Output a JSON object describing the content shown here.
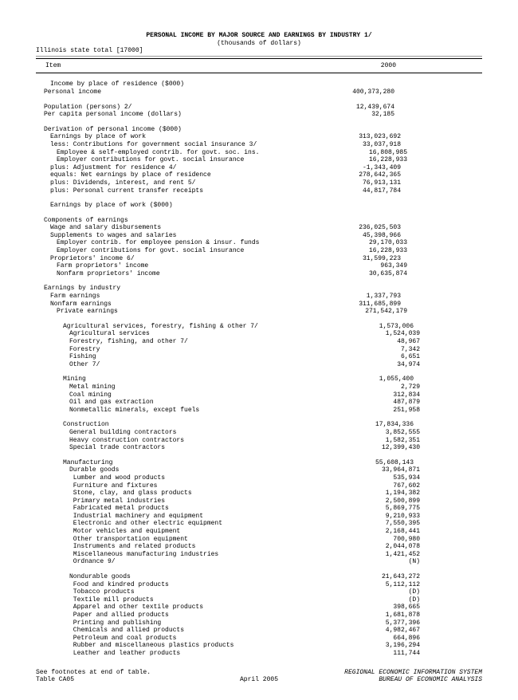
{
  "doc": {
    "title": "PERSONAL INCOME BY MAJOR SOURCE AND EARNINGS BY INDUSTRY 1/",
    "subtitle": "(thousands of dollars)",
    "state_line": "Illinois state total [17000]",
    "col_item": "Item",
    "col_year": "2000",
    "footnote1": "See footnotes at end of table.",
    "footnote2": "Table CA05",
    "date": "April 2005",
    "agency1": "REGIONAL ECONOMIC INFORMATION SYSTEM",
    "agency2": "BUREAU OF ECONOMIC ANALYSIS"
  },
  "rows": [
    {
      "t": "blank"
    },
    {
      "t": "row",
      "ind": 2,
      "label": "Income by place of residence ($000)",
      "val": ""
    },
    {
      "t": "row",
      "ind": 1,
      "label": "Personal income",
      "val": "400,373,280"
    },
    {
      "t": "blank"
    },
    {
      "t": "row",
      "ind": 1,
      "label": "Population (persons) 2/",
      "val": "12,439,674"
    },
    {
      "t": "row",
      "ind": 1,
      "label": "Per capita personal income (dollars)",
      "val": "32,185"
    },
    {
      "t": "blank"
    },
    {
      "t": "row",
      "ind": 1,
      "label": "Derivation of personal income ($000)",
      "val": ""
    },
    {
      "t": "row",
      "ind": 2,
      "label": "Earnings by place of work",
      "val": "313,023,692"
    },
    {
      "t": "row",
      "ind": 2,
      "label": "less: Contributions for government social insurance 3/",
      "val": "33,037,918"
    },
    {
      "t": "row",
      "ind": 3,
      "label": "Employee & self-employed contrib. for govt. soc. ins.",
      "val": "16,808,985"
    },
    {
      "t": "row",
      "ind": 3,
      "label": "Employer contributions for govt. social insurance",
      "val": "16,228,933"
    },
    {
      "t": "row",
      "ind": 2,
      "label": "plus: Adjustment for residence 4/",
      "val": "-1,343,409"
    },
    {
      "t": "row",
      "ind": 2,
      "label": "equals: Net earnings by place of residence",
      "val": "278,642,365"
    },
    {
      "t": "row",
      "ind": 2,
      "label": "plus: Dividends, interest, and rent 5/",
      "val": "76,913,131"
    },
    {
      "t": "row",
      "ind": 2,
      "label": "plus: Personal current transfer receipts",
      "val": "44,817,784"
    },
    {
      "t": "blank"
    },
    {
      "t": "row",
      "ind": 2,
      "label": "Earnings by place of work ($000)",
      "val": ""
    },
    {
      "t": "blank"
    },
    {
      "t": "row",
      "ind": 1,
      "label": "Components of earnings",
      "val": ""
    },
    {
      "t": "row",
      "ind": 2,
      "label": "Wage and salary disbursements",
      "val": "236,025,503"
    },
    {
      "t": "row",
      "ind": 2,
      "label": "Supplements to wages and salaries",
      "val": "45,398,966"
    },
    {
      "t": "row",
      "ind": 3,
      "label": "Employer contrib. for employee pension & insur. funds",
      "val": "29,170,033"
    },
    {
      "t": "row",
      "ind": 3,
      "label": "Employer contributions for govt. social insurance",
      "val": "16,228,933"
    },
    {
      "t": "row",
      "ind": 2,
      "label": "Proprietors' income 6/",
      "val": "31,599,223"
    },
    {
      "t": "row",
      "ind": 3,
      "label": "Farm proprietors' income",
      "val": "963,349"
    },
    {
      "t": "row",
      "ind": 3,
      "label": "Nonfarm proprietors' income",
      "val": "30,635,874"
    },
    {
      "t": "blank"
    },
    {
      "t": "row",
      "ind": 1,
      "label": "Earnings by industry",
      "val": ""
    },
    {
      "t": "row",
      "ind": 2,
      "label": "Farm earnings",
      "val": "1,337,793"
    },
    {
      "t": "row",
      "ind": 2,
      "label": "Nonfarm earnings",
      "val": "311,685,899"
    },
    {
      "t": "row",
      "ind": 3,
      "label": "Private earnings",
      "val": "271,542,179"
    },
    {
      "t": "blank"
    },
    {
      "t": "row",
      "ind": 4,
      "label": "Agricultural services, forestry, fishing & other 7/",
      "val": "1,573,006"
    },
    {
      "t": "row",
      "ind": 5,
      "label": "Agricultural services",
      "val": "1,524,039"
    },
    {
      "t": "row",
      "ind": 5,
      "label": "Forestry, fishing, and other 7/",
      "val": "48,967"
    },
    {
      "t": "row",
      "ind": 5,
      "label": "Forestry",
      "val": "7,342"
    },
    {
      "t": "row",
      "ind": 5,
      "label": "Fishing",
      "val": "6,651"
    },
    {
      "t": "row",
      "ind": 5,
      "label": "Other 7/",
      "val": "34,974"
    },
    {
      "t": "blank"
    },
    {
      "t": "row",
      "ind": 4,
      "label": "Mining",
      "val": "1,055,400"
    },
    {
      "t": "row",
      "ind": 5,
      "label": "Metal mining",
      "val": "2,729"
    },
    {
      "t": "row",
      "ind": 5,
      "label": "Coal mining",
      "val": "312,834"
    },
    {
      "t": "row",
      "ind": 5,
      "label": "Oil and gas extraction",
      "val": "487,879"
    },
    {
      "t": "row",
      "ind": 5,
      "label": "Nonmetallic minerals, except fuels",
      "val": "251,958"
    },
    {
      "t": "blank"
    },
    {
      "t": "row",
      "ind": 4,
      "label": "Construction",
      "val": "17,834,336"
    },
    {
      "t": "row",
      "ind": 5,
      "label": "General building contractors",
      "val": "3,852,555"
    },
    {
      "t": "row",
      "ind": 5,
      "label": "Heavy construction contractors",
      "val": "1,582,351"
    },
    {
      "t": "row",
      "ind": 5,
      "label": "Special trade contractors",
      "val": "12,399,430"
    },
    {
      "t": "blank"
    },
    {
      "t": "row",
      "ind": 4,
      "label": "Manufacturing",
      "val": "55,608,143"
    },
    {
      "t": "row",
      "ind": 5,
      "label": "Durable goods",
      "val": "33,964,871"
    },
    {
      "t": "row",
      "ind": 5,
      "label": " Lumber and wood products",
      "val": "535,934"
    },
    {
      "t": "row",
      "ind": 5,
      "label": " Furniture and fixtures",
      "val": "767,602"
    },
    {
      "t": "row",
      "ind": 5,
      "label": " Stone, clay, and glass products",
      "val": "1,194,382"
    },
    {
      "t": "row",
      "ind": 5,
      "label": " Primary metal industries",
      "val": "2,500,899"
    },
    {
      "t": "row",
      "ind": 5,
      "label": " Fabricated metal products",
      "val": "5,869,775"
    },
    {
      "t": "row",
      "ind": 5,
      "label": " Industrial machinery and equipment",
      "val": "9,210,933"
    },
    {
      "t": "row",
      "ind": 5,
      "label": " Electronic and other electric equipment",
      "val": "7,550,395"
    },
    {
      "t": "row",
      "ind": 5,
      "label": " Motor vehicles and equipment",
      "val": "2,168,441"
    },
    {
      "t": "row",
      "ind": 5,
      "label": " Other transportation equipment",
      "val": "700,980"
    },
    {
      "t": "row",
      "ind": 5,
      "label": " Instruments and related products",
      "val": "2,044,078"
    },
    {
      "t": "row",
      "ind": 5,
      "label": " Miscellaneous manufacturing industries",
      "val": "1,421,452"
    },
    {
      "t": "row",
      "ind": 5,
      "label": " Ordnance 9/",
      "val": "(N)"
    },
    {
      "t": "blank"
    },
    {
      "t": "row",
      "ind": 5,
      "label": "Nondurable goods",
      "val": "21,643,272"
    },
    {
      "t": "row",
      "ind": 5,
      "label": " Food and kindred products",
      "val": "5,112,112"
    },
    {
      "t": "row",
      "ind": 5,
      "label": " Tobacco products",
      "val": "(D)"
    },
    {
      "t": "row",
      "ind": 5,
      "label": " Textile mill products",
      "val": "(D)"
    },
    {
      "t": "row",
      "ind": 5,
      "label": " Apparel and other textile products",
      "val": "398,665"
    },
    {
      "t": "row",
      "ind": 5,
      "label": " Paper and allied products",
      "val": "1,681,878"
    },
    {
      "t": "row",
      "ind": 5,
      "label": " Printing and publishing",
      "val": "5,377,396"
    },
    {
      "t": "row",
      "ind": 5,
      "label": " Chemicals and allied products",
      "val": "4,982,467"
    },
    {
      "t": "row",
      "ind": 5,
      "label": " Petroleum and coal products",
      "val": "664,896"
    },
    {
      "t": "row",
      "ind": 5,
      "label": " Rubber and miscellaneous plastics products",
      "val": "3,196,294"
    },
    {
      "t": "row",
      "ind": 5,
      "label": " Leather and leather products",
      "val": "111,744"
    }
  ]
}
